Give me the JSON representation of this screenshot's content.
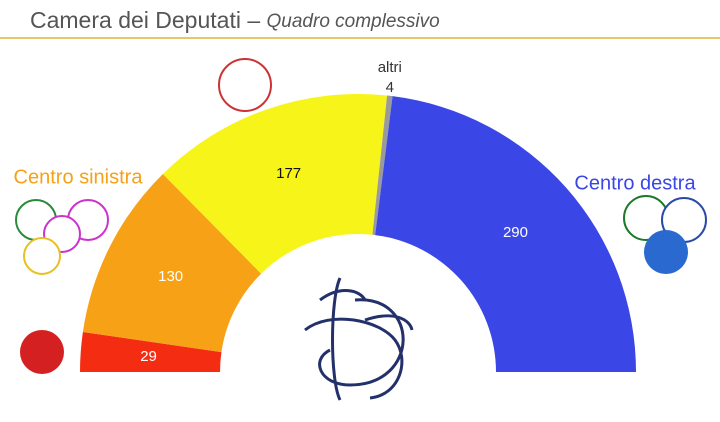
{
  "chart_data": {
    "type": "semicircle",
    "title": "Camera dei Deputati –",
    "subtitle": "Quadro complessivo",
    "categories": [
      null,
      "Centro sinistra",
      null,
      "altri",
      "Centro destra"
    ],
    "values": [
      29,
      130,
      177,
      4,
      290
    ],
    "colors": [
      "#f42d12",
      "#f7a116",
      "#f7f41a",
      "#9a9a9a",
      "#3a47e6"
    ]
  }
}
